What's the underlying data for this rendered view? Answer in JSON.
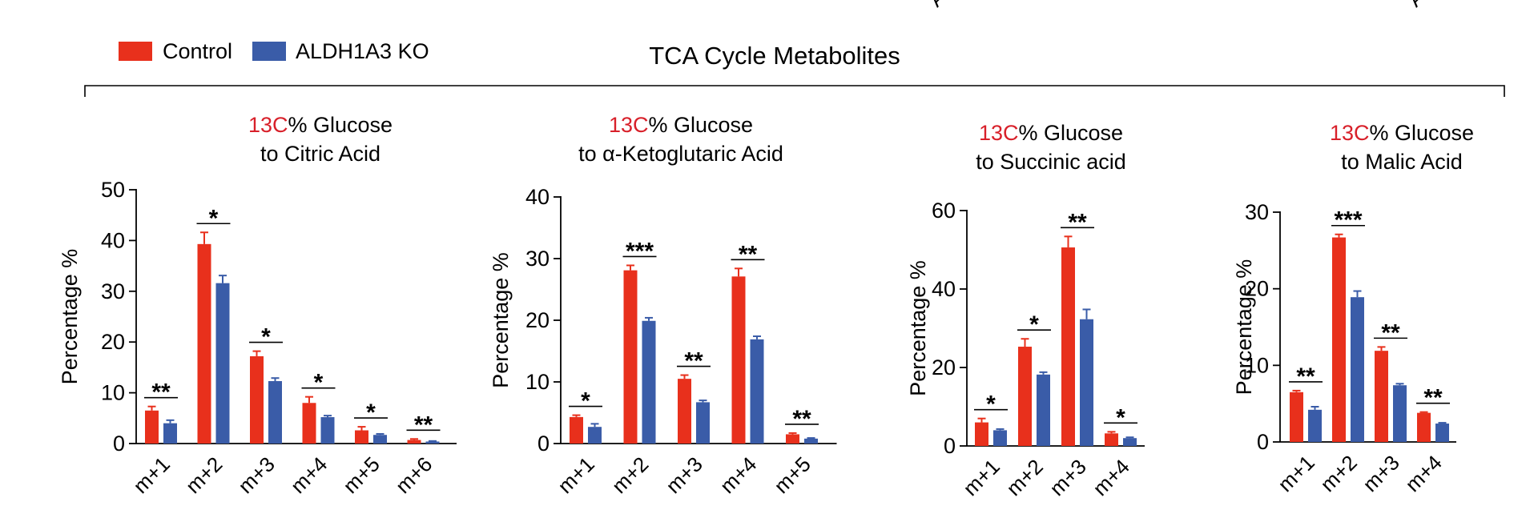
{
  "figure": {
    "title": "TCA Cycle Metabolites",
    "top_right_fragments": [
      "A",
      "A"
    ]
  },
  "legend": {
    "items": [
      {
        "label": "Control",
        "color": "#e8301c"
      },
      {
        "label": "ALDH1A3 KO",
        "color": "#3a5ca8"
      }
    ]
  },
  "chart_data": [
    {
      "type": "bar",
      "title_prefix": "13C",
      "title_line1_suffix": "% Glucose",
      "title_line2": "to Citric Acid",
      "ylabel": "Percentage %",
      "ylim": [
        0,
        50
      ],
      "yticks": [
        0,
        10,
        20,
        30,
        40,
        50
      ],
      "categories": [
        "m+1",
        "m+2",
        "m+3",
        "m+4",
        "m+5",
        "m+6"
      ],
      "series": [
        {
          "name": "Control",
          "values": [
            6.5,
            39.3,
            17.2,
            8.0,
            2.6,
            0.7
          ],
          "errors": [
            0.8,
            2.3,
            1.0,
            1.2,
            0.7,
            0.2
          ]
        },
        {
          "name": "ALDH1A3 KO",
          "values": [
            4.0,
            31.6,
            12.3,
            5.2,
            1.7,
            0.4
          ],
          "errors": [
            0.6,
            1.5,
            0.6,
            0.3,
            0.2,
            0.1
          ]
        }
      ],
      "significance": [
        "**",
        "*",
        "*",
        "*",
        "*",
        "**"
      ]
    },
    {
      "type": "bar",
      "title_prefix": "13C",
      "title_line1_suffix": "% Glucose",
      "title_line2": "to α-Ketoglutaric Acid",
      "ylabel": "Percentage %",
      "ylim": [
        0,
        40
      ],
      "yticks": [
        0,
        10,
        20,
        30,
        40
      ],
      "categories": [
        "m+1",
        "m+2",
        "m+3",
        "m+4",
        "m+5"
      ],
      "series": [
        {
          "name": "Control",
          "values": [
            4.3,
            28.1,
            10.5,
            27.1,
            1.5
          ],
          "errors": [
            0.3,
            0.8,
            0.6,
            1.3,
            0.2
          ]
        },
        {
          "name": "ALDH1A3 KO",
          "values": [
            2.7,
            19.9,
            6.7,
            16.9,
            0.8
          ],
          "errors": [
            0.5,
            0.5,
            0.3,
            0.5,
            0.1
          ]
        }
      ],
      "significance": [
        "*",
        "***",
        "**",
        "**",
        "**"
      ]
    },
    {
      "type": "bar",
      "title_prefix": "13C",
      "title_line1_suffix": "% Glucose",
      "title_line2": "to Succinic acid",
      "ylabel": "Percentage %",
      "ylim": [
        0,
        60
      ],
      "yticks": [
        0,
        20,
        40,
        60
      ],
      "categories": [
        "m+1",
        "m+2",
        "m+3",
        "m+4"
      ],
      "series": [
        {
          "name": "Control",
          "values": [
            6.0,
            25.3,
            50.6,
            3.2
          ],
          "errors": [
            1.0,
            2.0,
            2.8,
            0.4
          ]
        },
        {
          "name": "ALDH1A3 KO",
          "values": [
            4.0,
            18.2,
            32.3,
            2.0
          ],
          "errors": [
            0.3,
            0.6,
            2.5,
            0.2
          ]
        }
      ],
      "significance": [
        "*",
        "*",
        "**",
        "*"
      ]
    },
    {
      "type": "bar",
      "title_prefix": "13C",
      "title_line1_suffix": "% Glucose",
      "title_line2": "to Malic Acid",
      "ylabel": "Percentage %",
      "ylim": [
        0,
        30
      ],
      "yticks": [
        0,
        10,
        20,
        30
      ],
      "categories": [
        "m+1",
        "m+2",
        "m+3",
        "m+4"
      ],
      "series": [
        {
          "name": "Control",
          "values": [
            6.5,
            26.7,
            11.9,
            3.8
          ],
          "errors": [
            0.2,
            0.4,
            0.5,
            0.1
          ]
        },
        {
          "name": "ALDH1A3 KO",
          "values": [
            4.2,
            18.9,
            7.4,
            2.4
          ],
          "errors": [
            0.4,
            0.8,
            0.2,
            0.1
          ]
        }
      ],
      "significance": [
        "**",
        "***",
        "**",
        "**"
      ]
    }
  ]
}
